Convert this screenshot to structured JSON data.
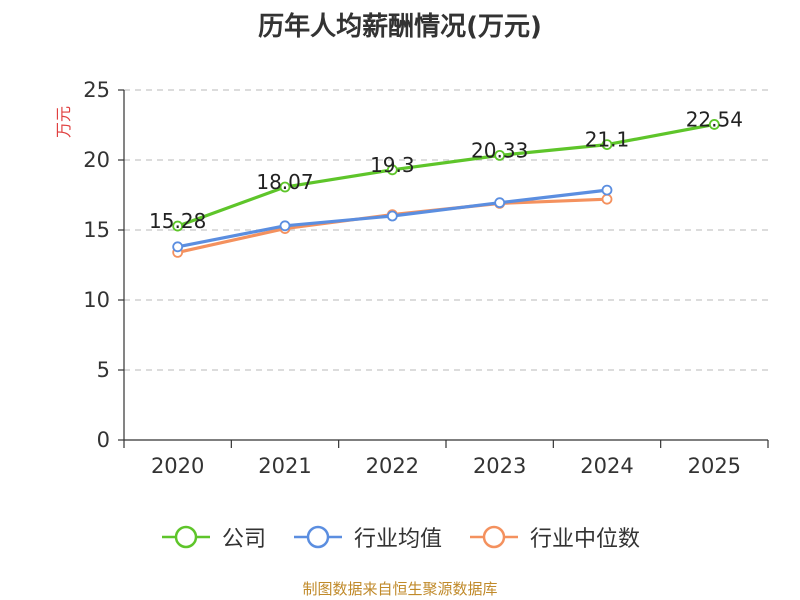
{
  "chart_data": {
    "type": "line",
    "title": "历年人均薪酬情况(万元)",
    "ylabel": "万元",
    "xlabel": "",
    "categories": [
      "2020",
      "2021",
      "2022",
      "2023",
      "2024",
      "2025"
    ],
    "ylim": [
      0,
      25
    ],
    "yticks": [
      0,
      5,
      10,
      15,
      20,
      25
    ],
    "grid": true,
    "legend_position": "bottom",
    "series": [
      {
        "name": "公司",
        "color": "#5ec52a",
        "values": [
          15.28,
          18.07,
          19.3,
          20.33,
          21.1,
          22.54
        ],
        "labels": [
          "15.28",
          "18.07",
          "19.3",
          "20.33",
          "21.1",
          "22.54"
        ]
      },
      {
        "name": "行业均值",
        "color": "#5b8ee0",
        "values": [
          13.8,
          15.3,
          16.0,
          16.95,
          17.85,
          null
        ]
      },
      {
        "name": "行业中位数",
        "color": "#f4915e",
        "values": [
          13.4,
          15.1,
          16.1,
          16.9,
          17.2,
          null
        ]
      }
    ],
    "ylabel_color": "#e04040"
  },
  "footer": "制图数据来自恒生聚源数据库"
}
